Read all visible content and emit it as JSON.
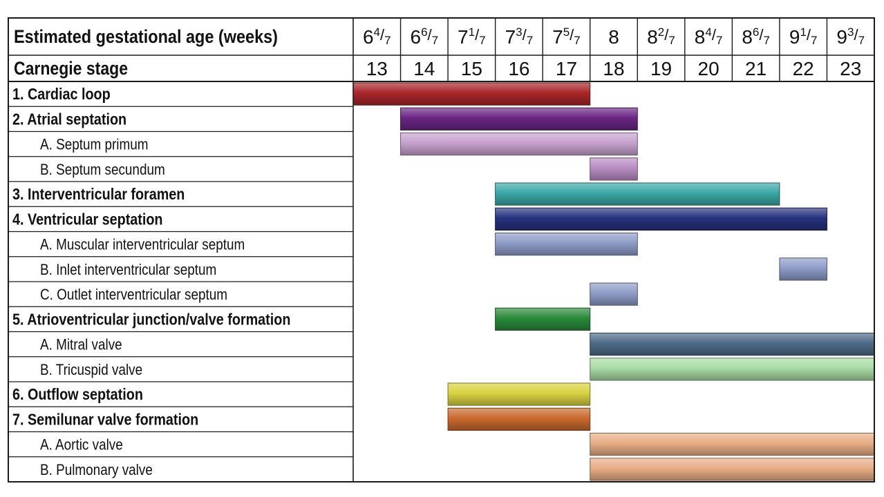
{
  "chart_data": {
    "type": "gantt",
    "header_rows": [
      {
        "label": "Estimated gestational age (weeks)",
        "cells": [
          {
            "whole": "6",
            "num": "4",
            "den": "7"
          },
          {
            "whole": "6",
            "num": "6",
            "den": "7"
          },
          {
            "whole": "7",
            "num": "1",
            "den": "7"
          },
          {
            "whole": "7",
            "num": "3",
            "den": "7"
          },
          {
            "whole": "7",
            "num": "5",
            "den": "7"
          },
          {
            "whole": "8",
            "num": "",
            "den": ""
          },
          {
            "whole": "8",
            "num": "2",
            "den": "7"
          },
          {
            "whole": "8",
            "num": "4",
            "den": "7"
          },
          {
            "whole": "8",
            "num": "6",
            "den": "7"
          },
          {
            "whole": "9",
            "num": "1",
            "den": "7"
          },
          {
            "whole": "9",
            "num": "3",
            "den": "7"
          }
        ]
      },
      {
        "label": "Carnegie stage",
        "cells": [
          "13",
          "14",
          "15",
          "16",
          "17",
          "18",
          "19",
          "20",
          "21",
          "22",
          "23"
        ]
      }
    ],
    "stages": [
      13,
      14,
      15,
      16,
      17,
      18,
      19,
      20,
      21,
      22,
      23
    ],
    "rows": [
      {
        "label": "1. Cardiac loop",
        "bold": true,
        "start": 13,
        "end": 17,
        "color": "#a8262a"
      },
      {
        "label": "2. Atrial septation",
        "bold": true,
        "start": 14,
        "end": 18,
        "color": "#6a2683"
      },
      {
        "label": "A. Septum primum",
        "bold": false,
        "start": 14,
        "end": 18,
        "color": "#c7a1cf"
      },
      {
        "label": "B. Septum secundum",
        "bold": false,
        "start": 18,
        "end": 18,
        "color": "#b98dc4"
      },
      {
        "label": "3. Interventricular foramen",
        "bold": true,
        "start": 16,
        "end": 21,
        "color": "#3aa7a6"
      },
      {
        "label": "4. Ventricular septation",
        "bold": true,
        "start": 16,
        "end": 22,
        "color": "#27327f"
      },
      {
        "label": "A. Muscular interventricular septum",
        "bold": false,
        "start": 16,
        "end": 18,
        "color": "#8e9cc7"
      },
      {
        "label": "B. Inlet interventricular septum",
        "bold": false,
        "start": 22,
        "end": 22,
        "color": "#8e9cc7"
      },
      {
        "label": "C. Outlet interventricular septum",
        "bold": false,
        "start": 18,
        "end": 18,
        "color": "#8e9cc7"
      },
      {
        "label": "5. Atrioventricular junction/valve formation",
        "bold": true,
        "start": 16,
        "end": 17,
        "color": "#2a8a3b"
      },
      {
        "label": "A. Mitral valve",
        "bold": false,
        "start": 18,
        "end": 23,
        "color": "#4d6b88"
      },
      {
        "label": "B. Tricuspid valve",
        "bold": false,
        "start": 18,
        "end": 23,
        "color": "#a9dba5"
      },
      {
        "label": "6. Outflow septation",
        "bold": true,
        "start": 15,
        "end": 17,
        "color": "#d9d242"
      },
      {
        "label": "7. Semilunar valve formation",
        "bold": true,
        "start": 15,
        "end": 17,
        "color": "#c96a2e"
      },
      {
        "label": "A. Aortic valve",
        "bold": false,
        "start": 18,
        "end": 23,
        "color": "#e8ae86"
      },
      {
        "label": "B. Pulmonary valve",
        "bold": false,
        "start": 18,
        "end": 23,
        "color": "#e8ae86"
      }
    ]
  }
}
